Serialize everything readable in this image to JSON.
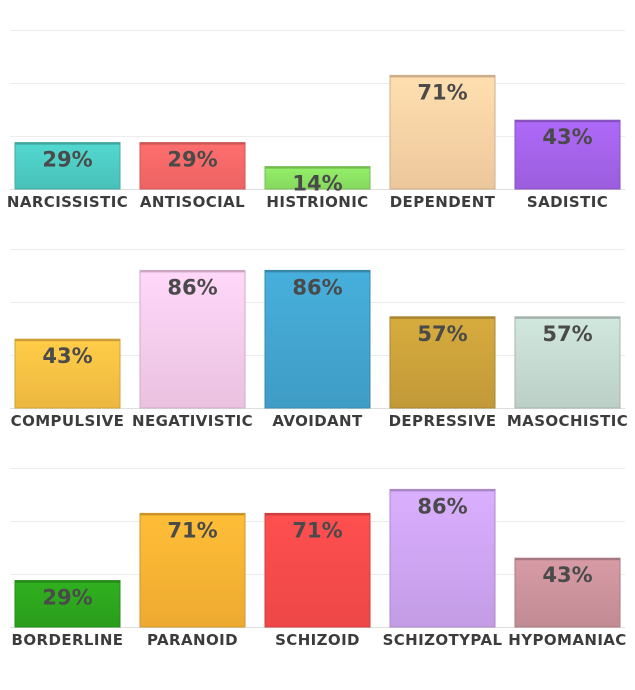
{
  "chart_data": [
    {
      "type": "bar",
      "categories": [
        "NARCISSISTIC",
        "ANTISOCIAL",
        "HISTRIONIC",
        "DEPENDENT",
        "SADISTIC"
      ],
      "values": [
        29,
        29,
        14,
        71,
        43
      ],
      "colors": [
        "#4fd0c8",
        "#ff6a6a",
        "#8fe865",
        "#ffd6a8",
        "#a765ee"
      ],
      "ylim": [
        0,
        100
      ],
      "grid": true
    },
    {
      "type": "bar",
      "categories": [
        "COMPULSIVE",
        "NEGATIVISTIC",
        "AVOIDANT",
        "DEPRESSIVE",
        "MASOCHISTIC"
      ],
      "values": [
        43,
        86,
        86,
        57,
        57
      ],
      "colors": [
        "#ffc545",
        "#fcd0f0",
        "#44a8d4",
        "#cfa53c",
        "#c9dfd5"
      ],
      "ylim": [
        0,
        100
      ],
      "grid": true
    },
    {
      "type": "bar",
      "categories": [
        "BORDERLINE",
        "PARANOID",
        "SCHIZOID",
        "SCHIZOTYPAL",
        "HYPOMANIAC"
      ],
      "values": [
        29,
        71,
        71,
        86,
        43
      ],
      "colors": [
        "#2ea91e",
        "#ffb735",
        "#ff4c4c",
        "#d2a8f6",
        "#d0959f"
      ],
      "ylim": [
        0,
        100
      ],
      "grid": true
    }
  ]
}
